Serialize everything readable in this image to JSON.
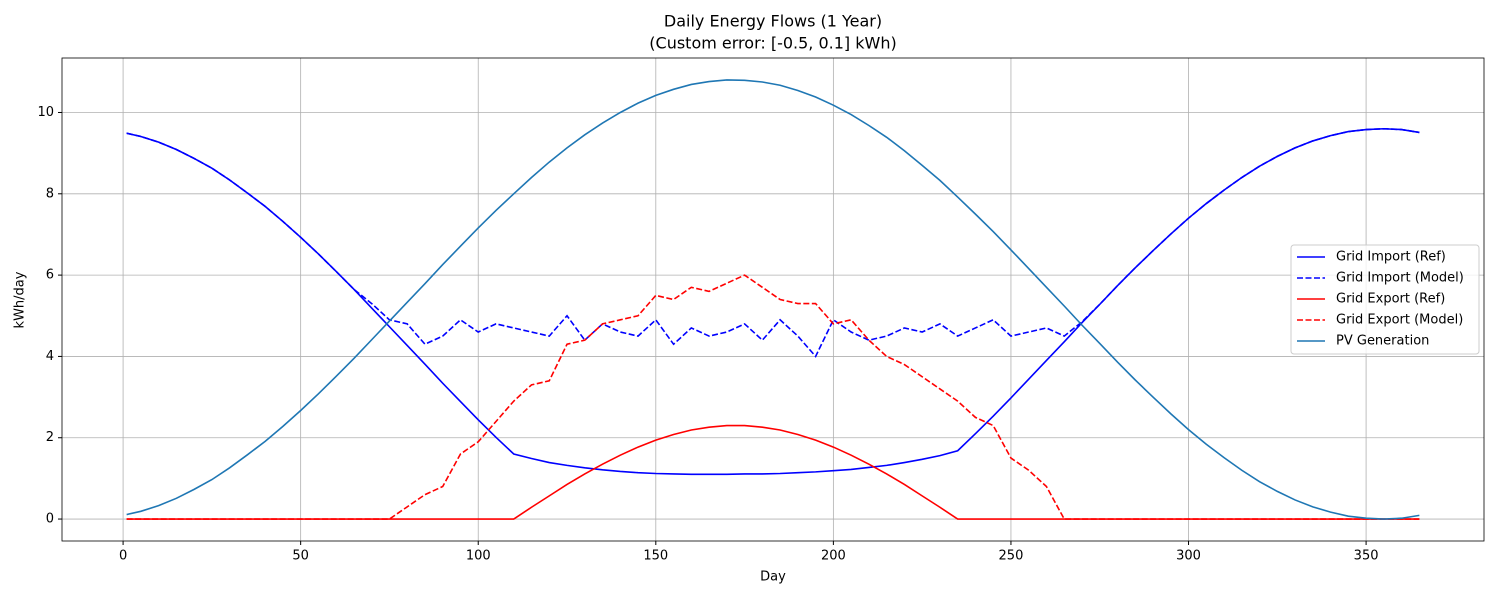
{
  "chart_data": {
    "type": "line",
    "title": "Daily Energy Flows (1 Year)",
    "subtitle": "(Custom error: [-0.5, 0.1] kWh)",
    "xlabel": "Day",
    "ylabel": "kWh/day",
    "x": [
      1,
      5,
      10,
      15,
      20,
      25,
      30,
      35,
      40,
      45,
      50,
      55,
      60,
      65,
      70,
      75,
      80,
      85,
      90,
      95,
      100,
      105,
      110,
      115,
      120,
      125,
      130,
      135,
      140,
      145,
      150,
      155,
      160,
      165,
      170,
      175,
      180,
      185,
      190,
      195,
      200,
      205,
      210,
      215,
      220,
      225,
      230,
      235,
      240,
      245,
      250,
      255,
      260,
      265,
      270,
      275,
      280,
      285,
      290,
      295,
      300,
      305,
      310,
      315,
      320,
      325,
      330,
      335,
      340,
      345,
      350,
      355,
      360,
      365
    ],
    "series": [
      {
        "name": "Grid Import (Ref)",
        "color": "#0000ff",
        "linestyle": "solid",
        "values": [
          9.49,
          9.41,
          9.27,
          9.09,
          8.87,
          8.63,
          8.34,
          8.02,
          7.69,
          7.32,
          6.93,
          6.52,
          6.09,
          5.65,
          5.19,
          4.73,
          4.27,
          3.81,
          3.34,
          2.89,
          2.44,
          2.01,
          1.6,
          1.49,
          1.39,
          1.32,
          1.26,
          1.21,
          1.17,
          1.14,
          1.12,
          1.11,
          1.1,
          1.1,
          1.1,
          1.11,
          1.11,
          1.12,
          1.14,
          1.16,
          1.19,
          1.22,
          1.27,
          1.32,
          1.39,
          1.47,
          1.56,
          1.68,
          2.1,
          2.53,
          2.98,
          3.44,
          3.9,
          4.36,
          4.83,
          5.28,
          5.74,
          6.18,
          6.6,
          7.01,
          7.4,
          7.76,
          8.09,
          8.4,
          8.68,
          8.92,
          9.13,
          9.3,
          9.43,
          9.53,
          9.58,
          9.6,
          9.58,
          9.51
        ]
      },
      {
        "name": "Grid Import (Model)",
        "color": "#0000ff",
        "linestyle": "dashed",
        "values": [
          9.49,
          9.41,
          9.27,
          9.09,
          8.87,
          8.63,
          8.34,
          8.02,
          7.69,
          7.32,
          6.93,
          6.52,
          6.09,
          5.65,
          5.3,
          4.9,
          4.8,
          4.3,
          4.5,
          4.9,
          4.6,
          4.8,
          4.7,
          4.6,
          4.5,
          5.0,
          4.4,
          4.8,
          4.6,
          4.5,
          4.9,
          4.3,
          4.7,
          4.5,
          4.6,
          4.8,
          4.4,
          4.9,
          4.5,
          4.0,
          4.9,
          4.6,
          4.4,
          4.5,
          4.7,
          4.6,
          4.8,
          4.5,
          4.7,
          4.9,
          4.5,
          4.6,
          4.7,
          4.5,
          4.85,
          5.28,
          5.74,
          6.18,
          6.6,
          7.01,
          7.4,
          7.76,
          8.09,
          8.4,
          8.68,
          8.92,
          9.13,
          9.3,
          9.43,
          9.53,
          9.58,
          9.6,
          9.58,
          9.51
        ]
      },
      {
        "name": "Grid Export (Ref)",
        "color": "#ff0000",
        "linestyle": "solid",
        "values": [
          0,
          0,
          0,
          0,
          0,
          0,
          0,
          0,
          0,
          0,
          0,
          0,
          0,
          0,
          0,
          0,
          0,
          0,
          0,
          0,
          0,
          0,
          0,
          0.29,
          0.57,
          0.85,
          1.11,
          1.35,
          1.57,
          1.77,
          1.94,
          2.08,
          2.19,
          2.26,
          2.3,
          2.3,
          2.26,
          2.19,
          2.08,
          1.94,
          1.77,
          1.57,
          1.35,
          1.11,
          0.85,
          0.57,
          0.29,
          0,
          0,
          0,
          0,
          0,
          0,
          0,
          0,
          0,
          0,
          0,
          0,
          0,
          0,
          0,
          0,
          0,
          0,
          0,
          0,
          0,
          0,
          0,
          0,
          0,
          0,
          0
        ]
      },
      {
        "name": "Grid Export (Model)",
        "color": "#ff0000",
        "linestyle": "dashed",
        "values": [
          0,
          0,
          0,
          0,
          0,
          0,
          0,
          0,
          0,
          0,
          0,
          0,
          0,
          0,
          0,
          0,
          0.3,
          0.6,
          0.8,
          1.6,
          1.9,
          2.4,
          2.9,
          3.3,
          3.4,
          4.3,
          4.4,
          4.8,
          4.9,
          5.0,
          5.5,
          5.4,
          5.7,
          5.6,
          5.8,
          6.0,
          5.7,
          5.4,
          5.3,
          5.3,
          4.8,
          4.9,
          4.4,
          4.0,
          3.8,
          3.5,
          3.2,
          2.9,
          2.5,
          2.3,
          1.5,
          1.2,
          0.8,
          0,
          0,
          0,
          0,
          0,
          0,
          0,
          0,
          0,
          0,
          0,
          0,
          0,
          0,
          0,
          0,
          0,
          0,
          0,
          0,
          0
        ]
      },
      {
        "name": "PV Generation",
        "color": "#1f77b4",
        "linestyle": "solid",
        "values": [
          0.11,
          0.19,
          0.33,
          0.51,
          0.73,
          0.97,
          1.26,
          1.58,
          1.91,
          2.28,
          2.67,
          3.08,
          3.51,
          3.95,
          4.41,
          4.87,
          5.33,
          5.79,
          6.26,
          6.71,
          7.16,
          7.59,
          8.0,
          8.4,
          8.78,
          9.13,
          9.45,
          9.74,
          10.0,
          10.23,
          10.42,
          10.57,
          10.69,
          10.76,
          10.8,
          10.79,
          10.75,
          10.67,
          10.54,
          10.38,
          10.18,
          9.95,
          9.68,
          9.39,
          9.06,
          8.7,
          8.33,
          7.92,
          7.5,
          7.07,
          6.62,
          6.16,
          5.7,
          5.24,
          4.77,
          4.32,
          3.86,
          3.42,
          3.0,
          2.59,
          2.2,
          1.84,
          1.51,
          1.2,
          0.92,
          0.68,
          0.47,
          0.3,
          0.17,
          0.07,
          0.02,
          0.0,
          0.02,
          0.09
        ]
      }
    ],
    "xlim": [
      -17.2,
      383.2
    ],
    "ylim": [
      -0.54,
      11.34
    ],
    "xticks": [
      0,
      50,
      100,
      150,
      200,
      250,
      300,
      350
    ],
    "yticks": [
      0,
      2,
      4,
      6,
      8,
      10
    ],
    "grid": true,
    "legend": "center right"
  }
}
